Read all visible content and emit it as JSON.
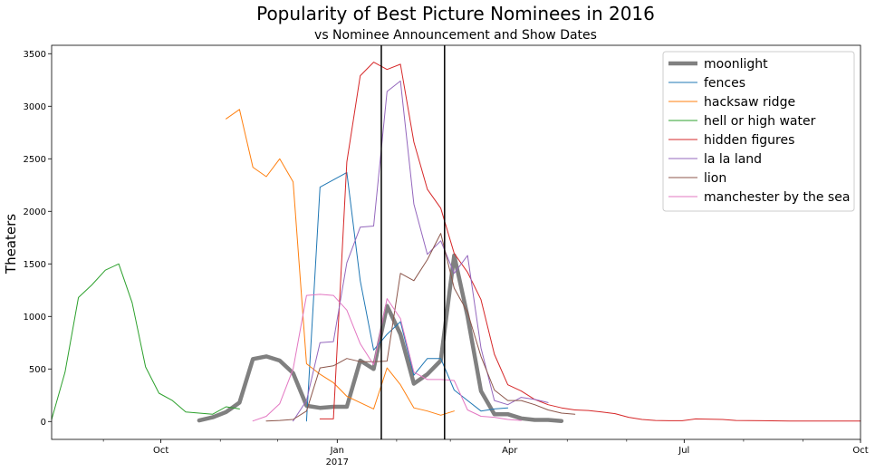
{
  "chart_data": {
    "type": "line",
    "title": "Popularity of Best Picture Nominees in 2016",
    "subtitle": "vs Nominee Announcement and Show Dates",
    "xlabel": "",
    "ylabel": "Theaters",
    "xlim": [
      "2016-08-05",
      "2017-10-01"
    ],
    "ylim": [
      -170,
      3580
    ],
    "y_ticks": [
      0,
      500,
      1000,
      1500,
      2000,
      2500,
      3000,
      3500
    ],
    "x_ticks": [
      {
        "date": "2016-10-01",
        "label": "Oct",
        "sublabel": ""
      },
      {
        "date": "2017-01-01",
        "label": "Jan",
        "sublabel": "2017"
      },
      {
        "date": "2017-04-01",
        "label": "Apr",
        "sublabel": ""
      },
      {
        "date": "2017-07-01",
        "label": "Jul",
        "sublabel": ""
      },
      {
        "date": "2017-10-01",
        "label": "Oct",
        "sublabel": ""
      }
    ],
    "vertical_lines": [
      "2017-01-24",
      "2017-02-26"
    ],
    "grid": false,
    "legend_position": "top-right",
    "series": [
      {
        "name": "moonlight",
        "color": "#808080",
        "width": 4.5,
        "points": [
          [
            "2016-10-21",
            10
          ],
          [
            "2016-10-28",
            40
          ],
          [
            "2016-11-04",
            90
          ],
          [
            "2016-11-11",
            180
          ],
          [
            "2016-11-18",
            595
          ],
          [
            "2016-11-25",
            620
          ],
          [
            "2016-12-02",
            580
          ],
          [
            "2016-12-09",
            460
          ],
          [
            "2016-12-16",
            150
          ],
          [
            "2016-12-23",
            130
          ],
          [
            "2016-12-30",
            140
          ],
          [
            "2017-01-06",
            140
          ],
          [
            "2017-01-13",
            580
          ],
          [
            "2017-01-20",
            500
          ],
          [
            "2017-01-27",
            1100
          ],
          [
            "2017-02-03",
            830
          ],
          [
            "2017-02-10",
            360
          ],
          [
            "2017-02-17",
            450
          ],
          [
            "2017-02-24",
            580
          ],
          [
            "2017-03-03",
            1580
          ],
          [
            "2017-03-10",
            1000
          ],
          [
            "2017-03-17",
            290
          ],
          [
            "2017-03-24",
            70
          ],
          [
            "2017-03-31",
            70
          ],
          [
            "2017-04-07",
            30
          ],
          [
            "2017-04-14",
            15
          ],
          [
            "2017-04-21",
            15
          ],
          [
            "2017-04-28",
            5
          ]
        ]
      },
      {
        "name": "fences",
        "color": "#1f77b4",
        "width": 1,
        "points": [
          [
            "2016-12-16",
            5
          ],
          [
            "2016-12-23",
            2230
          ],
          [
            "2017-01-06",
            2370
          ],
          [
            "2017-01-13",
            1340
          ],
          [
            "2017-01-20",
            680
          ],
          [
            "2017-01-27",
            830
          ],
          [
            "2017-02-03",
            950
          ],
          [
            "2017-02-10",
            440
          ],
          [
            "2017-02-17",
            600
          ],
          [
            "2017-02-24",
            600
          ],
          [
            "2017-03-03",
            300
          ],
          [
            "2017-03-10",
            200
          ],
          [
            "2017-03-17",
            100
          ],
          [
            "2017-03-24",
            120
          ],
          [
            "2017-03-31",
            130
          ]
        ]
      },
      {
        "name": "hacksaw ridge",
        "color": "#ff7f0e",
        "width": 1,
        "points": [
          [
            "2016-11-04",
            2880
          ],
          [
            "2016-11-11",
            2970
          ],
          [
            "2016-11-18",
            2420
          ],
          [
            "2016-11-25",
            2330
          ],
          [
            "2016-12-02",
            2500
          ],
          [
            "2016-12-09",
            2280
          ],
          [
            "2016-12-16",
            550
          ],
          [
            "2016-12-23",
            450
          ],
          [
            "2016-12-30",
            370
          ],
          [
            "2017-01-06",
            240
          ],
          [
            "2017-01-13",
            180
          ],
          [
            "2017-01-20",
            120
          ],
          [
            "2017-01-27",
            510
          ],
          [
            "2017-02-03",
            350
          ],
          [
            "2017-02-10",
            130
          ],
          [
            "2017-02-17",
            100
          ],
          [
            "2017-02-24",
            60
          ],
          [
            "2017-03-03",
            100
          ]
        ]
      },
      {
        "name": "hell or high water",
        "color": "#2ca02c",
        "width": 1,
        "points": [
          [
            "2016-08-05",
            20
          ],
          [
            "2016-08-12",
            470
          ],
          [
            "2016-08-19",
            1180
          ],
          [
            "2016-08-26",
            1300
          ],
          [
            "2016-09-02",
            1440
          ],
          [
            "2016-09-09",
            1500
          ],
          [
            "2016-09-16",
            1130
          ],
          [
            "2016-09-23",
            520
          ],
          [
            "2016-09-30",
            270
          ],
          [
            "2016-10-07",
            200
          ],
          [
            "2016-10-14",
            90
          ],
          [
            "2016-10-21",
            80
          ],
          [
            "2016-10-28",
            70
          ],
          [
            "2016-11-04",
            140
          ],
          [
            "2016-11-11",
            120
          ]
        ]
      },
      {
        "name": "hidden figures",
        "color": "#d62728",
        "width": 1,
        "points": [
          [
            "2016-12-23",
            25
          ],
          [
            "2016-12-30",
            25
          ],
          [
            "2017-01-06",
            2470
          ],
          [
            "2017-01-13",
            3290
          ],
          [
            "2017-01-20",
            3420
          ],
          [
            "2017-01-27",
            3350
          ],
          [
            "2017-02-03",
            3400
          ],
          [
            "2017-02-10",
            2660
          ],
          [
            "2017-02-17",
            2210
          ],
          [
            "2017-02-24",
            2030
          ],
          [
            "2017-03-03",
            1600
          ],
          [
            "2017-03-10",
            1420
          ],
          [
            "2017-03-17",
            1160
          ],
          [
            "2017-03-24",
            640
          ],
          [
            "2017-03-31",
            350
          ],
          [
            "2017-04-07",
            290
          ],
          [
            "2017-04-14",
            210
          ],
          [
            "2017-04-21",
            160
          ],
          [
            "2017-04-28",
            130
          ],
          [
            "2017-05-05",
            110
          ],
          [
            "2017-05-12",
            105
          ],
          [
            "2017-05-19",
            90
          ],
          [
            "2017-05-26",
            75
          ],
          [
            "2017-06-02",
            40
          ],
          [
            "2017-06-09",
            20
          ],
          [
            "2017-06-16",
            10
          ],
          [
            "2017-06-23",
            8
          ],
          [
            "2017-06-30",
            8
          ],
          [
            "2017-07-07",
            25
          ],
          [
            "2017-07-21",
            20
          ],
          [
            "2017-07-28",
            10
          ],
          [
            "2017-08-11",
            8
          ],
          [
            "2017-08-25",
            5
          ],
          [
            "2017-09-15",
            5
          ],
          [
            "2017-10-01",
            5
          ]
        ]
      },
      {
        "name": "la la land",
        "color": "#9467bd",
        "width": 1,
        "points": [
          [
            "2016-12-09",
            5
          ],
          [
            "2016-12-16",
            200
          ],
          [
            "2016-12-23",
            750
          ],
          [
            "2016-12-30",
            760
          ],
          [
            "2017-01-06",
            1510
          ],
          [
            "2017-01-13",
            1850
          ],
          [
            "2017-01-20",
            1860
          ],
          [
            "2017-01-27",
            3140
          ],
          [
            "2017-02-03",
            3240
          ],
          [
            "2017-02-10",
            2070
          ],
          [
            "2017-02-17",
            1590
          ],
          [
            "2017-02-24",
            1720
          ],
          [
            "2017-03-03",
            1410
          ],
          [
            "2017-03-10",
            1580
          ],
          [
            "2017-03-17",
            700
          ],
          [
            "2017-03-24",
            200
          ],
          [
            "2017-03-31",
            160
          ],
          [
            "2017-04-07",
            230
          ],
          [
            "2017-04-14",
            210
          ],
          [
            "2017-04-21",
            180
          ]
        ]
      },
      {
        "name": "lion",
        "color": "#8c564b",
        "width": 1,
        "points": [
          [
            "2016-11-25",
            5
          ],
          [
            "2016-12-02",
            10
          ],
          [
            "2016-12-09",
            20
          ],
          [
            "2016-12-16",
            100
          ],
          [
            "2016-12-23",
            510
          ],
          [
            "2016-12-30",
            530
          ],
          [
            "2017-01-06",
            600
          ],
          [
            "2017-01-13",
            570
          ],
          [
            "2017-01-20",
            570
          ],
          [
            "2017-01-27",
            575
          ],
          [
            "2017-02-03",
            1410
          ],
          [
            "2017-02-10",
            1340
          ],
          [
            "2017-02-17",
            1540
          ],
          [
            "2017-02-24",
            1790
          ],
          [
            "2017-03-03",
            1270
          ],
          [
            "2017-03-10",
            1040
          ],
          [
            "2017-03-17",
            620
          ],
          [
            "2017-03-24",
            300
          ],
          [
            "2017-03-31",
            200
          ],
          [
            "2017-04-07",
            200
          ],
          [
            "2017-04-14",
            160
          ],
          [
            "2017-04-21",
            110
          ],
          [
            "2017-04-28",
            80
          ],
          [
            "2017-05-05",
            70
          ]
        ]
      },
      {
        "name": "manchester by the sea",
        "color": "#e377c2",
        "width": 1,
        "points": [
          [
            "2016-11-18",
            5
          ],
          [
            "2016-11-25",
            50
          ],
          [
            "2016-12-02",
            170
          ],
          [
            "2016-12-09",
            500
          ],
          [
            "2016-12-16",
            1200
          ],
          [
            "2016-12-23",
            1210
          ],
          [
            "2016-12-30",
            1200
          ],
          [
            "2017-01-06",
            1060
          ],
          [
            "2017-01-13",
            740
          ],
          [
            "2017-01-20",
            540
          ],
          [
            "2017-01-27",
            1170
          ],
          [
            "2017-02-03",
            980
          ],
          [
            "2017-02-10",
            470
          ],
          [
            "2017-02-17",
            400
          ],
          [
            "2017-02-24",
            400
          ],
          [
            "2017-03-03",
            390
          ],
          [
            "2017-03-10",
            110
          ],
          [
            "2017-03-17",
            50
          ],
          [
            "2017-03-24",
            40
          ],
          [
            "2017-03-31",
            20
          ],
          [
            "2017-04-07",
            10
          ]
        ]
      }
    ]
  }
}
